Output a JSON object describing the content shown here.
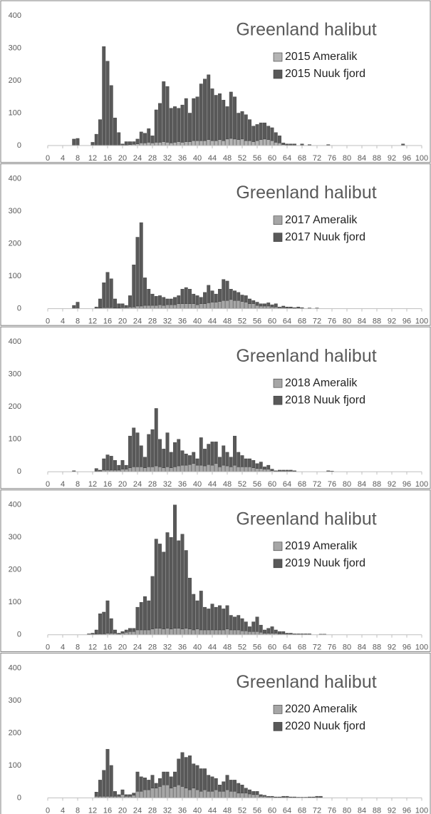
{
  "chart_data": [
    {
      "type": "bar",
      "stacked": true,
      "title": "Greenland halibut",
      "xlim": [
        0,
        100
      ],
      "ylim": [
        0,
        400
      ],
      "xticks": [
        0,
        4,
        8,
        12,
        16,
        20,
        24,
        28,
        32,
        36,
        40,
        44,
        48,
        52,
        56,
        60,
        64,
        68,
        72,
        76,
        80,
        84,
        88,
        92,
        96,
        100
      ],
      "yticks": [
        0,
        100,
        200,
        300,
        400
      ],
      "x": [
        7,
        8,
        9,
        10,
        11,
        12,
        13,
        14,
        15,
        16,
        17,
        18,
        19,
        20,
        21,
        22,
        23,
        24,
        25,
        26,
        27,
        28,
        29,
        30,
        31,
        32,
        33,
        34,
        35,
        36,
        37,
        38,
        39,
        40,
        41,
        42,
        43,
        44,
        45,
        46,
        47,
        48,
        49,
        50,
        51,
        52,
        53,
        54,
        55,
        56,
        57,
        58,
        59,
        60,
        61,
        62,
        63,
        64,
        65,
        66,
        67,
        68,
        69,
        70,
        75,
        95
      ],
      "series": [
        {
          "name": "2015 Ameralik",
          "color": "#b4b4b4",
          "values": [
            0,
            0,
            0,
            0,
            0,
            0,
            0,
            0,
            0,
            0,
            0,
            0,
            0,
            0,
            2,
            3,
            4,
            5,
            8,
            8,
            10,
            8,
            10,
            10,
            12,
            10,
            8,
            10,
            12,
            10,
            12,
            12,
            15,
            15,
            15,
            15,
            18,
            15,
            15,
            18,
            15,
            20,
            22,
            20,
            18,
            20,
            15,
            15,
            12,
            15,
            18,
            20,
            18,
            15,
            10,
            8,
            3,
            2,
            2,
            2,
            0,
            0,
            0,
            0,
            0,
            0
          ]
        },
        {
          "name": "2015 Nuuk fjord",
          "color": "#595959",
          "values": [
            20,
            22,
            0,
            0,
            0,
            10,
            35,
            80,
            305,
            260,
            185,
            85,
            40,
            5,
            10,
            9,
            8,
            15,
            34,
            30,
            42,
            22,
            100,
            120,
            185,
            172,
            107,
            110,
            103,
            115,
            133,
            88,
            130,
            135,
            175,
            190,
            200,
            160,
            140,
            142,
            125,
            100,
            143,
            130,
            82,
            85,
            80,
            65,
            48,
            50,
            52,
            50,
            42,
            40,
            30,
            22,
            5,
            3,
            3,
            3,
            0,
            5,
            0,
            3,
            3,
            5
          ]
        }
      ]
    },
    {
      "type": "bar",
      "stacked": true,
      "title": "Greenland halibut",
      "xlim": [
        0,
        100
      ],
      "ylim": [
        0,
        400
      ],
      "xticks": [
        0,
        4,
        8,
        12,
        16,
        20,
        24,
        28,
        32,
        36,
        40,
        44,
        48,
        52,
        56,
        60,
        64,
        68,
        72,
        76,
        80,
        84,
        88,
        92,
        96,
        100
      ],
      "yticks": [
        0,
        100,
        200,
        300,
        400
      ],
      "x": [
        7,
        8,
        9,
        10,
        11,
        12,
        13,
        14,
        15,
        16,
        17,
        18,
        19,
        20,
        21,
        22,
        23,
        24,
        25,
        26,
        27,
        28,
        29,
        30,
        31,
        32,
        33,
        34,
        35,
        36,
        37,
        38,
        39,
        40,
        41,
        42,
        43,
        44,
        45,
        46,
        47,
        48,
        49,
        50,
        51,
        52,
        53,
        54,
        55,
        56,
        57,
        58,
        59,
        60,
        61,
        62,
        63,
        64,
        65,
        66,
        67,
        68,
        69,
        70,
        71,
        72
      ],
      "series": [
        {
          "name": "2017 Ameralik",
          "color": "#a6a6a6",
          "values": [
            0,
            0,
            0,
            0,
            0,
            0,
            0,
            2,
            3,
            3,
            3,
            2,
            2,
            3,
            3,
            5,
            5,
            8,
            8,
            10,
            10,
            10,
            10,
            12,
            10,
            12,
            12,
            12,
            15,
            15,
            15,
            15,
            15,
            12,
            15,
            15,
            18,
            20,
            20,
            22,
            25,
            25,
            28,
            25,
            25,
            22,
            20,
            15,
            15,
            10,
            8,
            8,
            8,
            5,
            5,
            3,
            3,
            2,
            2,
            1,
            2,
            1,
            0,
            1,
            0,
            1
          ]
        },
        {
          "name": "2017 Nuuk fjord",
          "color": "#595959",
          "values": [
            10,
            20,
            0,
            0,
            0,
            0,
            5,
            28,
            77,
            109,
            89,
            28,
            13,
            12,
            7,
            35,
            130,
            212,
            257,
            85,
            50,
            35,
            28,
            28,
            25,
            18,
            18,
            23,
            25,
            45,
            50,
            45,
            30,
            28,
            20,
            35,
            54,
            35,
            25,
            38,
            65,
            60,
            32,
            30,
            25,
            20,
            20,
            15,
            10,
            10,
            7,
            7,
            10,
            7,
            10,
            2,
            5,
            3,
            3,
            2,
            3,
            2,
            0,
            1,
            0,
            1
          ]
        }
      ]
    },
    {
      "type": "bar",
      "stacked": true,
      "title": "Greenland halibut",
      "xlim": [
        0,
        100
      ],
      "ylim": [
        0,
        400
      ],
      "xticks": [
        0,
        4,
        8,
        12,
        16,
        20,
        24,
        28,
        32,
        36,
        40,
        44,
        48,
        52,
        56,
        60,
        64,
        68,
        72,
        76,
        80,
        84,
        88,
        92,
        96,
        100
      ],
      "yticks": [
        0,
        100,
        200,
        300,
        400
      ],
      "x": [
        7,
        8,
        9,
        10,
        11,
        12,
        13,
        14,
        15,
        16,
        17,
        18,
        19,
        20,
        21,
        22,
        23,
        24,
        25,
        26,
        27,
        28,
        29,
        30,
        31,
        32,
        33,
        34,
        35,
        36,
        37,
        38,
        39,
        40,
        41,
        42,
        43,
        44,
        45,
        46,
        47,
        48,
        49,
        50,
        51,
        52,
        53,
        54,
        55,
        56,
        57,
        58,
        59,
        60,
        61,
        62,
        63,
        64,
        65,
        66,
        75,
        76
      ],
      "series": [
        {
          "name": "2018 Ameralik",
          "color": "#a6a6a6",
          "values": [
            0,
            0,
            0,
            0,
            0,
            0,
            0,
            2,
            5,
            5,
            5,
            5,
            5,
            8,
            8,
            12,
            15,
            15,
            15,
            12,
            15,
            15,
            18,
            15,
            12,
            15,
            12,
            15,
            18,
            20,
            20,
            22,
            25,
            20,
            20,
            18,
            22,
            20,
            25,
            15,
            20,
            18,
            15,
            20,
            15,
            15,
            15,
            15,
            12,
            10,
            10,
            8,
            8,
            3,
            2,
            2,
            2,
            2,
            2,
            1,
            0,
            0
          ]
        },
        {
          "name": "2018 Nuuk fjord",
          "color": "#595959",
          "values": [
            3,
            0,
            0,
            0,
            0,
            0,
            10,
            3,
            35,
            47,
            43,
            30,
            15,
            27,
            12,
            98,
            120,
            105,
            65,
            33,
            100,
            115,
            177,
            85,
            58,
            105,
            48,
            75,
            82,
            45,
            35,
            28,
            35,
            20,
            85,
            52,
            63,
            72,
            67,
            30,
            60,
            42,
            30,
            90,
            45,
            35,
            25,
            25,
            23,
            15,
            20,
            7,
            12,
            5,
            1,
            3,
            3,
            3,
            3,
            2,
            3,
            2
          ]
        }
      ]
    },
    {
      "type": "bar",
      "stacked": true,
      "title": "Greenland halibut",
      "xlim": [
        0,
        100
      ],
      "ylim": [
        0,
        400
      ],
      "xticks": [
        0,
        4,
        8,
        12,
        16,
        20,
        24,
        28,
        32,
        36,
        40,
        44,
        48,
        52,
        56,
        60,
        64,
        68,
        72,
        76,
        80,
        84,
        88,
        92,
        96,
        100
      ],
      "yticks": [
        0,
        100,
        200,
        300,
        400
      ],
      "x": [
        11,
        12,
        13,
        14,
        15,
        16,
        17,
        18,
        19,
        20,
        21,
        22,
        23,
        24,
        25,
        26,
        27,
        28,
        29,
        30,
        31,
        32,
        33,
        34,
        35,
        36,
        37,
        38,
        39,
        40,
        41,
        42,
        43,
        44,
        45,
        46,
        47,
        48,
        49,
        50,
        51,
        52,
        53,
        54,
        55,
        56,
        57,
        58,
        59,
        60,
        61,
        62,
        63,
        64,
        65,
        66,
        67,
        68,
        69,
        70,
        71,
        72,
        73,
        74
      ],
      "series": [
        {
          "name": "2019 Ameralik",
          "color": "#a6a6a6",
          "values": [
            0,
            0,
            2,
            3,
            3,
            5,
            5,
            5,
            3,
            5,
            8,
            10,
            10,
            15,
            15,
            15,
            15,
            18,
            20,
            20,
            18,
            20,
            18,
            20,
            20,
            18,
            20,
            18,
            15,
            18,
            15,
            15,
            15,
            15,
            15,
            15,
            15,
            18,
            15,
            15,
            15,
            12,
            12,
            10,
            10,
            10,
            8,
            5,
            5,
            5,
            5,
            3,
            3,
            2,
            2,
            1,
            1,
            1,
            1,
            1,
            0,
            0,
            0,
            0
          ]
        },
        {
          "name": "2019 Nuuk fjord",
          "color": "#595959",
          "values": [
            3,
            5,
            13,
            62,
            67,
            100,
            45,
            10,
            2,
            5,
            7,
            10,
            10,
            70,
            85,
            103,
            90,
            162,
            275,
            260,
            237,
            295,
            282,
            380,
            270,
            292,
            240,
            157,
            110,
            87,
            120,
            70,
            65,
            80,
            70,
            75,
            65,
            72,
            45,
            40,
            45,
            38,
            28,
            15,
            30,
            45,
            22,
            10,
            15,
            20,
            10,
            7,
            7,
            3,
            3,
            2,
            2,
            2,
            2,
            2,
            0,
            0,
            2,
            2
          ]
        }
      ]
    },
    {
      "type": "bar",
      "stacked": true,
      "title": "Greenland halibut",
      "xlim": [
        0,
        100
      ],
      "ylim": [
        0,
        400
      ],
      "xticks": [
        0,
        4,
        8,
        12,
        16,
        20,
        24,
        28,
        32,
        36,
        40,
        44,
        48,
        52,
        56,
        60,
        64,
        68,
        72,
        76,
        80,
        84,
        88,
        92,
        96,
        100
      ],
      "yticks": [
        0,
        100,
        200,
        300,
        400
      ],
      "x": [
        13,
        14,
        15,
        16,
        17,
        18,
        19,
        20,
        21,
        22,
        23,
        24,
        25,
        26,
        27,
        28,
        29,
        30,
        31,
        32,
        33,
        34,
        35,
        36,
        37,
        38,
        39,
        40,
        41,
        42,
        43,
        44,
        45,
        46,
        47,
        48,
        49,
        50,
        51,
        52,
        53,
        54,
        55,
        56,
        57,
        58,
        59,
        60,
        61,
        62,
        63,
        64,
        65,
        66,
        67,
        68,
        69,
        70,
        71,
        72,
        73
      ],
      "series": [
        {
          "name": "2020 Ameralik",
          "color": "#a6a6a6",
          "values": [
            5,
            5,
            5,
            5,
            5,
            5,
            5,
            10,
            5,
            5,
            8,
            20,
            20,
            25,
            25,
            30,
            30,
            35,
            40,
            40,
            30,
            35,
            40,
            35,
            30,
            25,
            30,
            25,
            20,
            25,
            20,
            20,
            25,
            20,
            20,
            25,
            20,
            20,
            15,
            15,
            15,
            12,
            10,
            10,
            5,
            5,
            3,
            3,
            2,
            2,
            2,
            2,
            1,
            1,
            1,
            1,
            1,
            1,
            1,
            2,
            2
          ]
        },
        {
          "name": "2020 Nuuk fjord",
          "color": "#595959",
          "values": [
            13,
            50,
            80,
            145,
            95,
            15,
            5,
            15,
            5,
            5,
            7,
            60,
            45,
            37,
            30,
            40,
            15,
            25,
            40,
            40,
            35,
            45,
            80,
            105,
            95,
            105,
            75,
            75,
            70,
            65,
            50,
            45,
            35,
            20,
            30,
            45,
            35,
            35,
            30,
            25,
            15,
            13,
            10,
            10,
            5,
            3,
            2,
            2,
            1,
            1,
            3,
            3,
            2,
            2,
            1,
            1,
            1,
            2,
            2,
            3,
            3
          ]
        }
      ]
    }
  ]
}
